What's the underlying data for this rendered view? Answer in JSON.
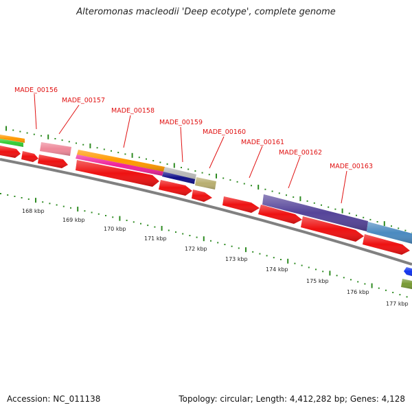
{
  "title": "Alteromonas macleodii 'Deep ecotype', complete genome",
  "footer": {
    "accession": "Accession: NC_011138",
    "stats": "Topology: circular; Length: 4,412,282 bp; Genes: 4,128"
  },
  "gene_labels": [
    "MADE_00156",
    "MADE_00157",
    "MADE_00158",
    "MADE_00159",
    "MADE_00160",
    "MADE_00161",
    "MADE_00162",
    "MADE_00163"
  ],
  "kbp_labels": [
    "168 kbp",
    "169 kbp",
    "170 kbp",
    "171 kbp",
    "172 kbp",
    "173 kbp",
    "174 kbp",
    "175 kbp",
    "176 kbp",
    "177 kbp"
  ],
  "colors": {
    "cds": "#ee1111",
    "backbone": "#808080",
    "tick": "#2e8b22",
    "label": "#e01010",
    "orange": "#ff9900",
    "green": "#33cc33",
    "pink": "#ee8899",
    "magenta": "#ee2299",
    "silver": "#b8b8b8",
    "navy": "#10108a",
    "khaki": "#b8ae70",
    "purple": "#554499",
    "steelblue": "#4a8ac0",
    "blue": "#1133ee",
    "olive": "#779933"
  }
}
